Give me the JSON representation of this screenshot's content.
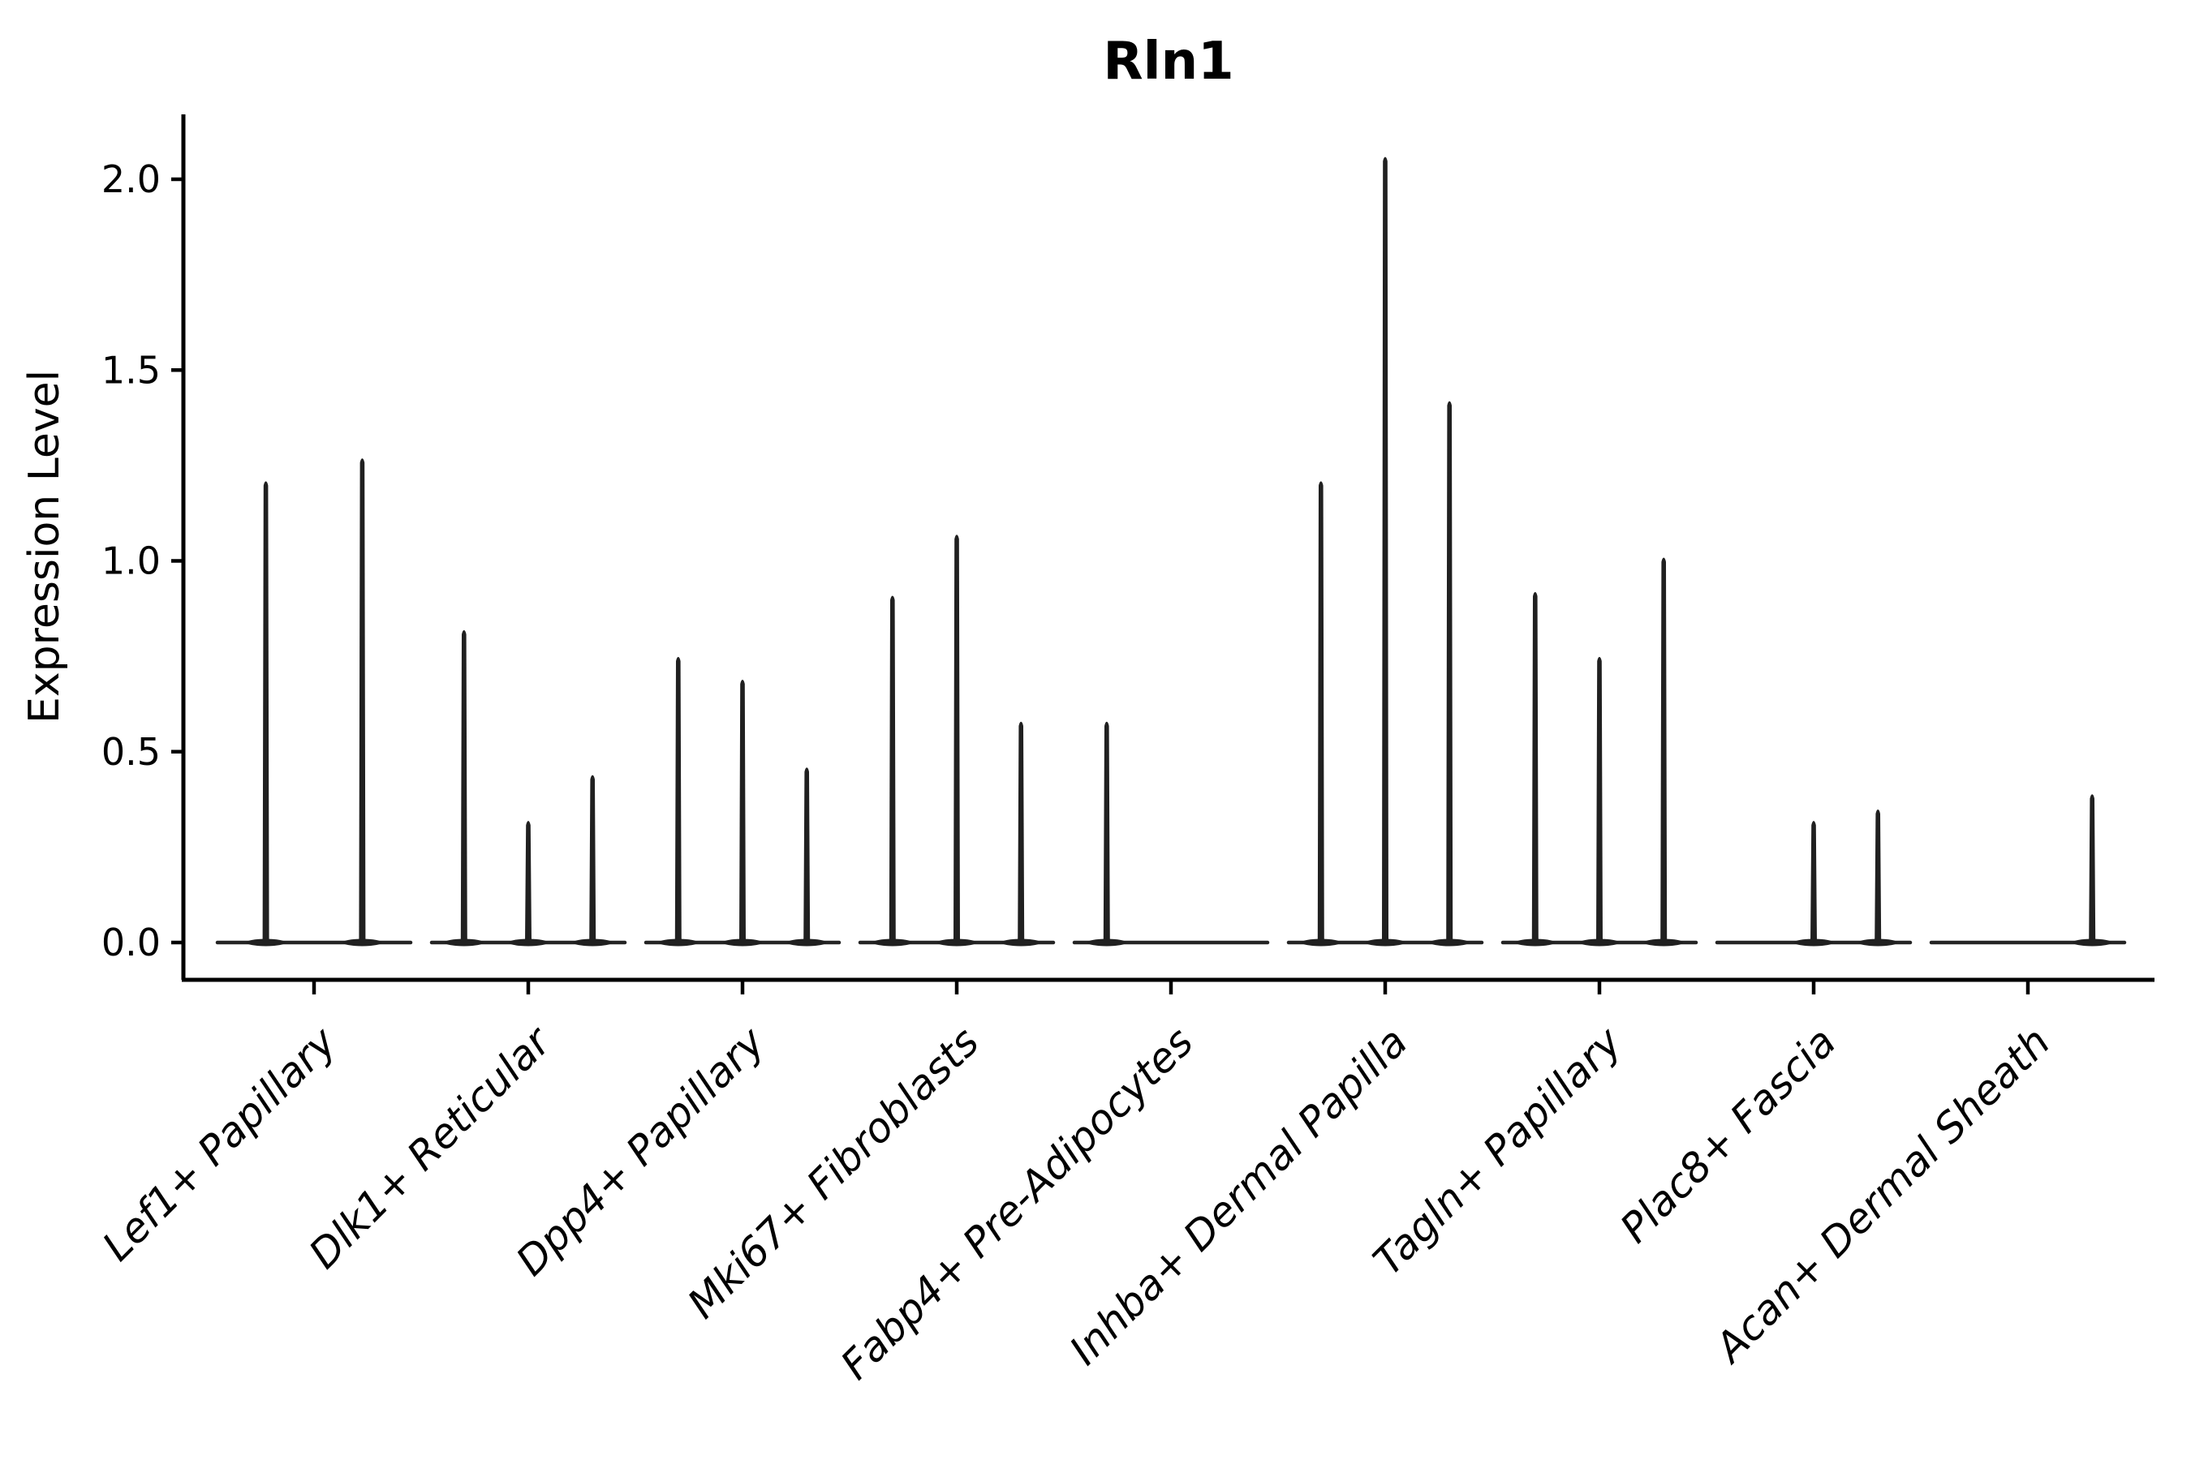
{
  "chart_data": {
    "type": "violin",
    "title": "Rln1",
    "ylabel": "Expression Level",
    "xlabel": "",
    "categories": [
      "Lef1+ Papillary",
      "Dlk1+ Reticular",
      "Dpp4+ Papillary",
      "Mki67+ Fibroblasts",
      "Fabp4+ Pre-Adipocytes",
      "Inhba+ Dermal Papilla",
      "Tagln+ Papillary",
      "Plac8+ Fascia",
      "Acan+ Dermal Sheath"
    ],
    "series": [
      {
        "category": "Lef1+ Papillary",
        "violins": [
          {
            "offset": -0.225,
            "peak": 1.21
          },
          {
            "offset": 0.225,
            "peak": 1.27
          }
        ]
      },
      {
        "category": "Dlk1+ Reticular",
        "violins": [
          {
            "offset": -0.3,
            "peak": 0.82
          },
          {
            "offset": 0,
            "peak": 0.32
          },
          {
            "offset": 0.3,
            "peak": 0.44
          }
        ]
      },
      {
        "category": "Dpp4+ Papillary",
        "violins": [
          {
            "offset": -0.3,
            "peak": 0.75
          },
          {
            "offset": 0,
            "peak": 0.69
          },
          {
            "offset": 0.3,
            "peak": 0.46
          }
        ]
      },
      {
        "category": "Mki67+ Fibroblasts",
        "violins": [
          {
            "offset": -0.3,
            "peak": 0.91
          },
          {
            "offset": 0,
            "peak": 1.07
          },
          {
            "offset": 0.3,
            "peak": 0.58
          }
        ]
      },
      {
        "category": "Fabp4+ Pre-Adipocytes",
        "violins": [
          {
            "offset": -0.3,
            "peak": 0.58
          },
          {
            "offset": 0,
            "peak": 0
          },
          {
            "offset": 0.3,
            "peak": 0
          }
        ]
      },
      {
        "category": "Inhba+ Dermal Papilla",
        "violins": [
          {
            "offset": -0.3,
            "peak": 1.21
          },
          {
            "offset": 0,
            "peak": 2.06
          },
          {
            "offset": 0.3,
            "peak": 1.42
          }
        ]
      },
      {
        "category": "Tagln+ Papillary",
        "violins": [
          {
            "offset": -0.3,
            "peak": 0.92
          },
          {
            "offset": 0,
            "peak": 0.75
          },
          {
            "offset": 0.3,
            "peak": 1.01
          }
        ]
      },
      {
        "category": "Plac8+ Fascia",
        "violins": [
          {
            "offset": -0.3,
            "peak": 0
          },
          {
            "offset": 0,
            "peak": 0.32
          },
          {
            "offset": 0.3,
            "peak": 0.35
          }
        ]
      },
      {
        "category": "Acan+ Dermal Sheath",
        "violins": [
          {
            "offset": -0.3,
            "peak": 0
          },
          {
            "offset": 0,
            "peak": 0
          },
          {
            "offset": 0.3,
            "peak": 0.39
          }
        ]
      }
    ],
    "yticks": [
      0.0,
      0.5,
      1.0,
      1.5,
      2.0
    ],
    "ylim": [
      -0.1,
      2.17
    ],
    "grid": false,
    "legend": "none",
    "colors": {
      "violin": "#202020",
      "baseline": "#242424",
      "axis": "#000000",
      "background": "#ffffff"
    }
  }
}
